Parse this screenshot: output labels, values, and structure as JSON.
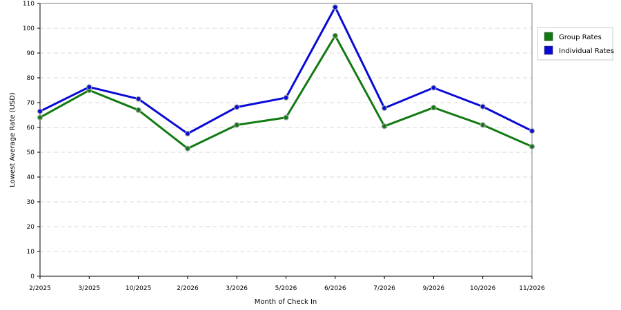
{
  "chart_data": {
    "type": "line",
    "categories": [
      "2/2025",
      "3/2025",
      "10/2025",
      "2/2026",
      "3/2026",
      "5/2026",
      "6/2026",
      "7/2026",
      "9/2026",
      "10/2026",
      "11/2026"
    ],
    "series": [
      {
        "name": "Group Rates",
        "color": "#117a11",
        "values": [
          64,
          75,
          67,
          51.5,
          61,
          64,
          97,
          60.5,
          68,
          61,
          52.3
        ]
      },
      {
        "name": "Individual Rates",
        "color": "#0a0ad6",
        "values": [
          66.5,
          76.3,
          71.5,
          57.5,
          68.2,
          72,
          108.5,
          67.8,
          76,
          68.4,
          58.6
        ]
      }
    ],
    "xlabel": "Month of Check In",
    "ylabel": "Lowest Average Rate (USD)",
    "ylim": [
      0,
      110
    ],
    "yticks": [
      0,
      10,
      20,
      30,
      40,
      50,
      60,
      70,
      80,
      90,
      100,
      110
    ],
    "grid": true,
    "legend_position": "right"
  }
}
